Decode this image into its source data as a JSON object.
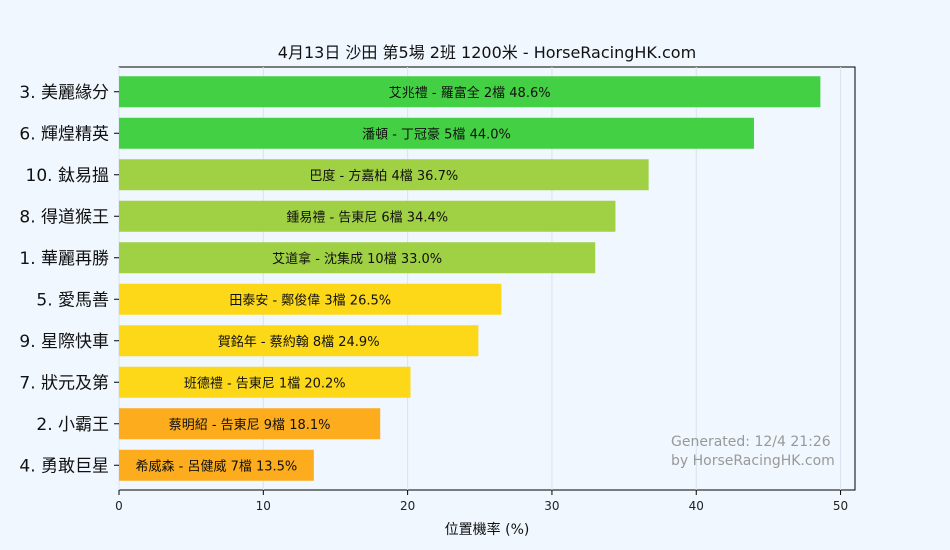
{
  "chart_data": {
    "type": "bar",
    "orientation": "horizontal",
    "title": "4月13日  沙田  第5場  2班  1200米 - HorseRacingHK.com",
    "xlabel": "位置機率 (%)",
    "ylabel": "",
    "xlim": [
      0,
      51
    ],
    "xticks": [
      "0",
      "10",
      "20",
      "30",
      "40",
      "50"
    ],
    "grid": true,
    "categories": [
      "3. 美麗緣分",
      "6. 輝煌精英",
      "10. 鈦易搵",
      "8. 得道猴王",
      "1. 華麗再勝",
      "5. 愛馬善",
      "9. 星際快車",
      "7. 狀元及第",
      "2. 小霸王",
      "4. 勇敢巨星"
    ],
    "values": [
      48.6,
      44.0,
      36.7,
      34.4,
      33.0,
      26.5,
      24.9,
      20.2,
      18.1,
      13.5
    ],
    "bar_labels": [
      "艾兆禮 - 羅富全 2檔  48.6%",
      "潘頓 - 丁冠豪 5檔  44.0%",
      "巴度 - 方嘉柏 4檔  36.7%",
      "鍾易禮 - 告東尼 6檔  34.4%",
      "艾道拿 - 沈集成 10檔  33.0%",
      "田泰安 - 鄭俊偉 3檔  26.5%",
      "賀銘年 - 蔡約翰 8檔  24.9%",
      "班德禮 - 告東尼 1檔  20.2%",
      "蔡明紹 - 告東尼 9檔  18.1%",
      "希威森 - 呂健威 7檔  13.5%"
    ],
    "colors": [
      "#44d044",
      "#44d044",
      "#a0d044",
      "#a0d044",
      "#a0d044",
      "#fcd818",
      "#fcd818",
      "#fcd818",
      "#fcac1c",
      "#fcac1c"
    ]
  },
  "watermark": {
    "line1": "Generated: 12/4 21:26",
    "line2": "by HorseRacingHK.com"
  }
}
